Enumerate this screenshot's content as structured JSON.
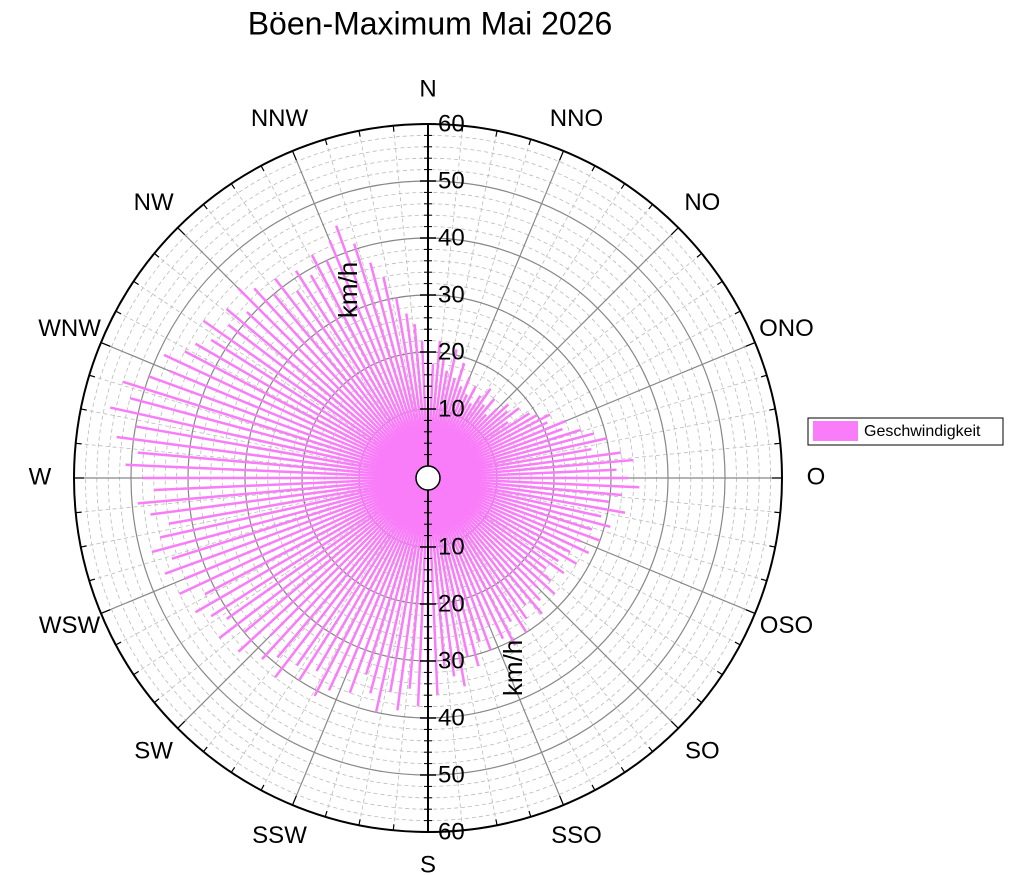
{
  "chart_data": {
    "type": "polar-bar",
    "title": "Böen-Maximum Mai 2026",
    "axis_label": "km/h",
    "legend": "right",
    "series": [
      {
        "name": "Geschwindigkeit",
        "color": "#f97cf9",
        "x": [
          0,
          2.5,
          5,
          7.5,
          10,
          12.5,
          15,
          17.5,
          20,
          22.5,
          25,
          27.5,
          30,
          32.5,
          35,
          37.5,
          40,
          42.5,
          45,
          47.5,
          50,
          52.5,
          55,
          57.5,
          60,
          62.5,
          65,
          67.5,
          70,
          72.5,
          75,
          77.5,
          80,
          82.5,
          85,
          87.5,
          90,
          92.5,
          95,
          97.5,
          100,
          102.5,
          105,
          107.5,
          110,
          112.5,
          115,
          117.5,
          120,
          122.5,
          125,
          127.5,
          130,
          132.5,
          135,
          137.5,
          140,
          142.5,
          145,
          147.5,
          150,
          152.5,
          155,
          157.5,
          160,
          162.5,
          165,
          167.5,
          170,
          172.5,
          175,
          177.5,
          180,
          182.5,
          185,
          187.5,
          190,
          192.5,
          195,
          197.5,
          200,
          202.5,
          205,
          207.5,
          210,
          212.5,
          215,
          217.5,
          220,
          222.5,
          225,
          227.5,
          230,
          232.5,
          235,
          237.5,
          240,
          242.5,
          245,
          247.5,
          250,
          252.5,
          255,
          257.5,
          260,
          262.5,
          265,
          267.5,
          270,
          272.5,
          275,
          277.5,
          280,
          282.5,
          285,
          287.5,
          290,
          292.5,
          295,
          297.5,
          300,
          302.5,
          305,
          307.5,
          310,
          312.5,
          315,
          317.5,
          320,
          322.5,
          325,
          327.5,
          330,
          332.5,
          335,
          337.5,
          340,
          342.5,
          345,
          347.5,
          350,
          352.5,
          355,
          357.5
        ],
        "values": [
          20,
          18,
          22,
          19,
          17,
          21,
          16,
          19,
          15,
          17,
          14,
          16,
          13,
          15,
          17,
          14,
          16,
          13,
          15,
          17,
          16,
          18,
          15,
          19,
          20,
          22,
          21,
          24,
          23,
          26,
          28,
          30,
          27,
          32,
          34,
          31,
          33,
          35,
          32,
          30,
          33,
          29,
          31,
          28,
          30,
          27,
          29,
          26,
          28,
          25,
          27,
          24,
          26,
          28,
          25,
          27,
          29,
          26,
          28,
          30,
          27,
          31,
          29,
          26,
          30,
          28,
          32,
          30,
          35,
          33,
          31,
          36,
          34,
          38,
          35,
          39,
          36,
          40,
          37,
          34,
          38,
          35,
          39,
          41,
          37,
          40,
          38,
          42,
          39,
          41,
          37,
          43,
          40,
          44,
          41,
          43,
          45,
          42,
          46,
          44,
          47,
          45,
          48,
          46,
          44,
          47,
          49,
          46,
          48,
          51,
          49,
          53,
          50,
          55,
          52,
          54,
          50,
          47,
          49,
          46,
          45,
          43,
          46,
          42,
          44,
          41,
          45,
          43,
          40,
          42,
          38,
          41,
          39,
          42,
          40,
          43,
          45,
          41,
          37,
          34,
          30,
          27,
          25,
          22
        ]
      }
    ],
    "xlim": [
      0,
      360
    ],
    "xticks": [
      {
        "value": 0,
        "label": "N"
      },
      {
        "value": 22.5,
        "label": "NNO"
      },
      {
        "value": 45,
        "label": "NO"
      },
      {
        "value": 67.5,
        "label": "ONO"
      },
      {
        "value": 90,
        "label": "O"
      },
      {
        "value": 112.5,
        "label": "OSO"
      },
      {
        "value": 135,
        "label": "SO"
      },
      {
        "value": 157.5,
        "label": "SSO"
      },
      {
        "value": 180,
        "label": "S"
      },
      {
        "value": 202.5,
        "label": "SSW"
      },
      {
        "value": 225,
        "label": "SW"
      },
      {
        "value": 247.5,
        "label": "WSW"
      },
      {
        "value": 270,
        "label": "W"
      },
      {
        "value": 292.5,
        "label": "WNW"
      },
      {
        "value": 315,
        "label": "NW"
      },
      {
        "value": 337.5,
        "label": "NNW"
      }
    ],
    "ylim": [
      0,
      60
    ],
    "yticks": [
      10,
      20,
      30,
      40,
      50,
      60
    ],
    "grid": true
  }
}
